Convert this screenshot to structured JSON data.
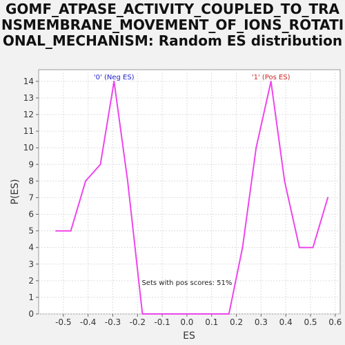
{
  "chart_data": {
    "type": "line",
    "title": "GOMF_ATPASE_ACTIVITY_COUPLED_TO_TRANSMEMBRANE_MOVEMENT_OF_IONS_ROTATIONAL_MECHANISM: Random ES distribution",
    "xlabel": "ES",
    "ylabel": "P(ES)",
    "xlim": [
      -0.6,
      0.62
    ],
    "ylim": [
      0,
      14.7
    ],
    "xticks": [
      "-0.5",
      "-0.4",
      "-0.3",
      "-0.2",
      "-0.1",
      "0.0",
      "0.1",
      "0.2",
      "0.3",
      "0.4",
      "0.5",
      "0.6"
    ],
    "xtick_values": [
      -0.5,
      -0.4,
      -0.3,
      -0.2,
      -0.1,
      0.0,
      0.1,
      0.2,
      0.3,
      0.4,
      0.5,
      0.6
    ],
    "yticks": [
      "0",
      "1",
      "2",
      "3",
      "4",
      "5",
      "6",
      "7",
      "8",
      "9",
      "10",
      "11",
      "12",
      "13",
      "14"
    ],
    "ytick_values": [
      0,
      1,
      2,
      3,
      4,
      5,
      6,
      7,
      8,
      9,
      10,
      11,
      12,
      13,
      14
    ],
    "grid": true,
    "series": [
      {
        "color": "#ee44ee",
        "x": [
          -0.53,
          -0.47,
          -0.41,
          -0.35,
          -0.295,
          -0.24,
          -0.18,
          -0.12,
          -0.06,
          0.0,
          0.06,
          0.12,
          0.17,
          0.225,
          0.28,
          0.34,
          0.395,
          0.455,
          0.51,
          0.57
        ],
        "y": [
          5,
          5,
          8,
          9,
          14,
          8,
          0,
          0,
          0,
          0,
          0,
          0,
          0,
          4,
          10,
          14,
          8,
          4,
          4,
          7
        ]
      }
    ],
    "annotations": [
      {
        "text": "'0' (Neg ES)",
        "x": -0.295,
        "y": 14,
        "color": "#2222cc"
      },
      {
        "text": "'1' (Pos ES)",
        "x": 0.34,
        "y": 14,
        "color": "#cc2222"
      },
      {
        "text": "Sets with pos scores: 51%",
        "x": 0.0,
        "y": 1.9,
        "color": "#222222"
      }
    ]
  }
}
